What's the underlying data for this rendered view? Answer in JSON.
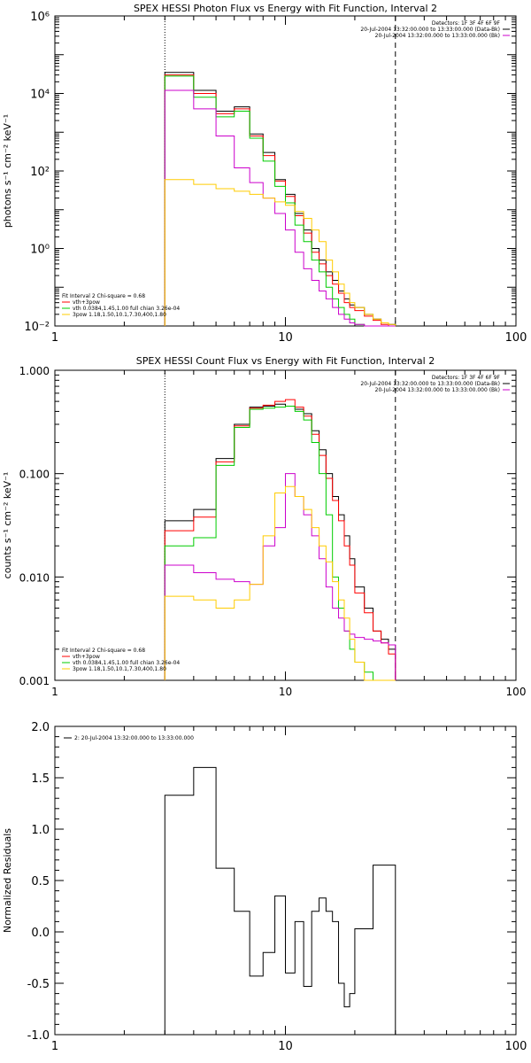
{
  "chart_data": [
    {
      "type": "line",
      "title": "SPEX HESSI Photon Flux vs Energy with Fit Function, Interval 2",
      "xlabel": "",
      "ylabel": "photons s⁻¹ cm⁻² keV⁻¹",
      "xscale": "log",
      "yscale": "log",
      "xlim": [
        1,
        100
      ],
      "ylim": [
        0.01,
        1000000
      ],
      "xticks": [
        1,
        10,
        100
      ],
      "xtick_labels": [
        "1",
        "10",
        "100"
      ],
      "yticks": [
        0.01,
        1,
        100,
        10000,
        1000000
      ],
      "ytick_labels": [
        "10⁻²",
        "10⁰",
        "10²",
        "10⁴",
        "10⁶"
      ],
      "vertical_lines": [
        {
          "x": 3,
          "style": "dotted"
        },
        {
          "x": 30,
          "style": "dashed"
        }
      ],
      "legend_top_right": [
        {
          "text": "Detectors: 1F 3F 4F 6F 9F",
          "color": ""
        },
        {
          "text": "20-Jul-2004 13:32:00.000 to 13:33:00.000 (Data-Bk)",
          "color": "#000000"
        },
        {
          "text": "20-Jul-2004 13:32:00.000 to 13:33:00.000 (Bk)",
          "color": "#cc00cc"
        }
      ],
      "legend_bottom_left": [
        {
          "text": "Fit Interval 2   Chi-square = 0.68",
          "color": ""
        },
        {
          "text": "vth+3pow",
          "color": "#ff0000"
        },
        {
          "text": "vth 0.0384,1.45,1.00  full chian 3.26e-04",
          "color": "#00cc00"
        },
        {
          "text": "3pow 1.18,1.50,10.1,7.30,400,1.80",
          "color": "#ffcc00"
        }
      ],
      "edges": [
        3.0,
        4.0,
        5.0,
        6.0,
        7.0,
        8.0,
        9.0,
        10.0,
        11.0,
        12.0,
        13.0,
        14.0,
        15.0,
        16.0,
        17.0,
        18.0,
        19.0,
        20.0,
        22.0,
        24.0,
        26.0,
        28.0,
        30.0
      ],
      "series": [
        {
          "name": "20-Jul-2004 13:32:00.000 to 13:33:00.000 (Data-Bk)",
          "color": "#000000",
          "values": [
            35000,
            12000,
            3500,
            4500,
            900,
            300,
            60,
            25,
            8,
            3,
            1.0,
            0.5,
            0.25,
            0.15,
            0.08,
            0.05,
            0.035,
            0.03,
            0.02,
            0.015,
            0.012,
            0.011
          ]
        },
        {
          "name": "vth+3pow",
          "color": "#ff0000",
          "values": [
            30000,
            10000,
            3000,
            4000,
            800,
            250,
            55,
            22,
            7,
            2.5,
            0.8,
            0.4,
            0.2,
            0.12,
            0.07,
            0.04,
            0.03,
            0.025,
            0.018,
            0.014,
            0.011,
            0.01
          ]
        },
        {
          "name": "vth 0.0384,1.45,1.00  full chian 3.26e-04",
          "color": "#00cc00",
          "values": [
            28000,
            8000,
            2500,
            3500,
            700,
            180,
            40,
            15,
            4,
            1.5,
            0.5,
            0.25,
            0.1,
            0.05,
            0.03,
            0.02,
            0.015,
            0.011,
            0.009,
            0.008,
            0.008,
            0.008
          ]
        },
        {
          "name": "20-Jul-2004 13:32:00.000 to 13:33:00.000 (Bk)",
          "color": "#cc00cc",
          "values": [
            12000,
            4000,
            800,
            120,
            50,
            20,
            8,
            3,
            0.8,
            0.3,
            0.15,
            0.08,
            0.05,
            0.03,
            0.02,
            0.015,
            0.012,
            0.011,
            0.009,
            0.008,
            0.008,
            0.008
          ]
        },
        {
          "name": "3pow 1.18,1.50,10.1,7.30,400,1.80",
          "color": "#ffcc00",
          "values": [
            60,
            45,
            35,
            30,
            25,
            20,
            16,
            13,
            9,
            6,
            3,
            1.5,
            0.5,
            0.25,
            0.12,
            0.07,
            0.04,
            0.03,
            0.02,
            0.015,
            0.012,
            0.011
          ]
        }
      ]
    },
    {
      "type": "line",
      "title": "SPEX HESSI Count Flux vs Energy with Fit Function, Interval 2",
      "xlabel": "",
      "ylabel": "counts s⁻¹ cm⁻² keV⁻¹",
      "xscale": "log",
      "yscale": "log",
      "xlim": [
        1,
        100
      ],
      "ylim": [
        0.001,
        1.0
      ],
      "xticks": [
        1,
        10,
        100
      ],
      "xtick_labels": [
        "1",
        "10",
        "100"
      ],
      "yticks": [
        0.001,
        0.01,
        0.1,
        1.0
      ],
      "ytick_labels": [
        "0.001",
        "0.010",
        "0.100",
        "1.000"
      ],
      "vertical_lines": [
        {
          "x": 3,
          "style": "dotted"
        },
        {
          "x": 30,
          "style": "dashed"
        }
      ],
      "legend_top_right": [
        {
          "text": "Detectors: 1F 3F 4F 6F 9F",
          "color": ""
        },
        {
          "text": "20-Jul-2004 13:32:00.000 to 13:33:00.000 (Data-Bk)",
          "color": "#000000"
        },
        {
          "text": "20-Jul-2004 13:32:00.000 to 13:33:00.000 (Bk)",
          "color": "#cc00cc"
        }
      ],
      "legend_bottom_left": [
        {
          "text": "Fit Interval 2   Chi-square = 0.68",
          "color": ""
        },
        {
          "text": "vth+3pow",
          "color": "#ff0000"
        },
        {
          "text": "vth 0.0384,1.45,1.00  full chian 3.26e-04",
          "color": "#00cc00"
        },
        {
          "text": "3pow 1.18,1.50,10.1,7.30,400,1.80",
          "color": "#ffcc00"
        }
      ],
      "edges": [
        3.0,
        4.0,
        5.0,
        6.0,
        7.0,
        8.0,
        9.0,
        10.0,
        11.0,
        12.0,
        13.0,
        14.0,
        15.0,
        16.0,
        17.0,
        18.0,
        19.0,
        20.0,
        22.0,
        24.0,
        26.0,
        28.0,
        30.0
      ],
      "series": [
        {
          "name": "20-Jul-2004 13:32:00.000 to 13:33:00.000 (Data-Bk)",
          "color": "#000000",
          "values": [
            0.035,
            0.045,
            0.14,
            0.3,
            0.44,
            0.45,
            0.47,
            0.45,
            0.42,
            0.38,
            0.26,
            0.17,
            0.1,
            0.06,
            0.04,
            0.025,
            0.015,
            0.008,
            0.005,
            0.003,
            0.0025,
            0.002
          ]
        },
        {
          "name": "vth+3pow",
          "color": "#ff0000",
          "values": [
            0.028,
            0.038,
            0.13,
            0.29,
            0.43,
            0.46,
            0.5,
            0.52,
            0.44,
            0.36,
            0.24,
            0.15,
            0.09,
            0.055,
            0.035,
            0.02,
            0.013,
            0.007,
            0.0045,
            0.003,
            0.0023,
            0.0018
          ]
        },
        {
          "name": "vth 0.0384,1.45,1.00  full chian 3.26e-04",
          "color": "#00cc00",
          "values": [
            0.02,
            0.024,
            0.12,
            0.28,
            0.42,
            0.43,
            0.44,
            0.45,
            0.4,
            0.33,
            0.2,
            0.1,
            0.04,
            0.01,
            0.005,
            0.003,
            0.002,
            0.0015,
            0.0012,
            0.001,
            0.001,
            0.001
          ]
        },
        {
          "name": "20-Jul-2004 13:32:00.000 to 13:33:00.000 (Bk)",
          "color": "#cc00cc",
          "values": [
            0.013,
            0.011,
            0.0095,
            0.009,
            0.0085,
            0.02,
            0.03,
            0.1,
            0.06,
            0.04,
            0.025,
            0.015,
            0.008,
            0.005,
            0.004,
            0.003,
            0.0028,
            0.0026,
            0.0025,
            0.0024,
            0.0023,
            0.0022
          ]
        },
        {
          "name": "3pow 1.18,1.50,10.1,7.30,400,1.80",
          "color": "#ffcc00",
          "values": [
            0.0065,
            0.006,
            0.005,
            0.006,
            0.0085,
            0.025,
            0.065,
            0.075,
            0.06,
            0.045,
            0.03,
            0.02,
            0.014,
            0.009,
            0.006,
            0.004,
            0.0025,
            0.0015,
            0.001,
            0.001,
            0.001,
            0.001
          ]
        }
      ]
    },
    {
      "type": "line",
      "title": "",
      "xlabel": "",
      "ylabel": "Normalized Residuals",
      "xscale": "log",
      "yscale": "linear",
      "xlim": [
        1,
        100
      ],
      "ylim": [
        -1.0,
        2.0
      ],
      "xticks": [
        1,
        10,
        100
      ],
      "xtick_labels": [
        "1",
        "10",
        "100"
      ],
      "yticks": [
        -1.0,
        -0.5,
        0.0,
        0.5,
        1.0,
        1.5,
        2.0
      ],
      "ytick_labels": [
        "-1.0",
        "-0.5",
        "0.0",
        "0.5",
        "1.0",
        "1.5",
        "2.0"
      ],
      "legend_top_left": [
        {
          "text": "2: 20-Jul-2004 13:32:00.000 to 13:33:00.000",
          "color": "#000000"
        }
      ],
      "edges": [
        3.0,
        4.0,
        5.0,
        6.0,
        7.0,
        8.0,
        9.0,
        10.0,
        11.0,
        12.0,
        13.0,
        14.0,
        15.0,
        16.0,
        17.0,
        18.0,
        19.0,
        20.0,
        22.0,
        24.0,
        26.0,
        28.0,
        30.0
      ],
      "series": [
        {
          "name": "2: 20-Jul-2004 13:32:00.000 to 13:33:00.000",
          "color": "#000000",
          "values": [
            1.33,
            1.6,
            0.62,
            0.2,
            -0.43,
            -0.2,
            0.35,
            -0.4,
            0.1,
            -0.53,
            0.2,
            0.33,
            0.2,
            0.1,
            -0.5,
            -0.73,
            -0.6,
            0.03,
            0.03,
            0.65,
            0.65,
            0.65
          ]
        }
      ]
    }
  ]
}
